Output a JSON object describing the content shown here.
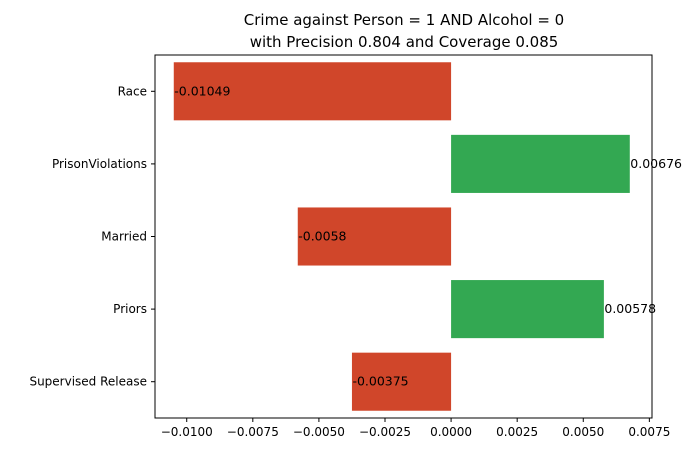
{
  "chart_data": {
    "type": "bar",
    "orientation": "horizontal",
    "title_line1": "Crime against Person = 1 AND Alcohol = 0",
    "title_line2": "with Precision 0.804 and Coverage 0.085",
    "categories": [
      "Race",
      "PrisonViolations",
      "Married",
      "Priors",
      "Supervised Release"
    ],
    "values": [
      -0.01049,
      0.00676,
      -0.0058,
      0.00578,
      -0.00375
    ],
    "value_labels": [
      "-0.01049",
      "0.00676",
      "-0.0058",
      "0.00578",
      "-0.00375"
    ],
    "xlim": [
      -0.0112,
      0.0076
    ],
    "xticks": [
      -0.01,
      -0.0075,
      -0.005,
      -0.0025,
      0.0,
      0.0025,
      0.005,
      0.0075
    ],
    "xtick_labels": [
      "−0.0100",
      "−0.0075",
      "−0.0050",
      "−0.0025",
      "0.0000",
      "0.0025",
      "0.0050",
      "0.0075"
    ],
    "xlabel": "",
    "ylabel": "",
    "grid": false,
    "colors": {
      "positive": "#33a852",
      "negative": "#d0462a"
    }
  }
}
